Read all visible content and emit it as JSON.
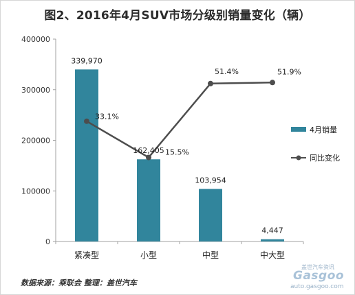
{
  "title": "图2、2016年4月SUV市场分级别销量变化（辆）",
  "source": "数据来源：乘联会 整理：盖世汽车",
  "watermark": {
    "brand": "Gasgoo",
    "cn": "盖世汽车资讯",
    "url": "auto.gasgoo.com"
  },
  "colors": {
    "bar": "#31859C",
    "line": "#4D4D4D",
    "axis": "#A0A0A0"
  },
  "chart_data": {
    "type": "bar",
    "title": "图2、2016年4月SUV市场分级别销量变化（辆）",
    "categories": [
      "紧凑型",
      "小型",
      "中型",
      "中大型"
    ],
    "ylim": [
      0,
      400000
    ],
    "yticks": [
      "0",
      "100000",
      "200000",
      "300000",
      "400000"
    ],
    "grid": false,
    "legend_position": "right",
    "series": [
      {
        "name": "4月销量",
        "type": "bar",
        "values": [
          339970,
          162405,
          103954,
          4447
        ],
        "labels": [
          "339,970",
          "162,405",
          "103,954",
          "4,447"
        ]
      },
      {
        "name": "同比变化",
        "type": "line",
        "values": [
          33.1,
          15.5,
          51.4,
          51.9
        ],
        "labels": [
          "33.1%",
          "15.5%",
          "51.4%",
          "51.9%"
        ]
      }
    ]
  }
}
